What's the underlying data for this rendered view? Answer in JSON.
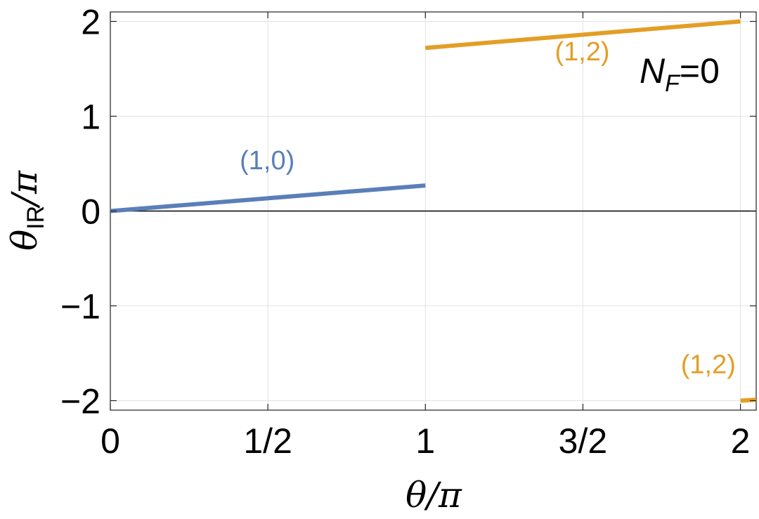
{
  "chart_data": {
    "type": "line",
    "title": "",
    "xlabel": "θ/π",
    "ylabel": {
      "base": "θ",
      "sub": "IR",
      "tail": "/π"
    },
    "xlim": [
      0,
      2.05
    ],
    "ylim": [
      -2.1,
      2.1
    ],
    "grid": true,
    "x_ticks": [
      {
        "value": 0,
        "label": "0"
      },
      {
        "value": 0.5,
        "label": "1/2"
      },
      {
        "value": 1,
        "label": "1"
      },
      {
        "value": 1.5,
        "label": "3/2"
      },
      {
        "value": 2,
        "label": "2"
      }
    ],
    "y_ticks": [
      {
        "value": -2,
        "label": "−2"
      },
      {
        "value": -1,
        "label": "−1"
      },
      {
        "value": 0,
        "label": "0"
      },
      {
        "value": 1,
        "label": "1"
      },
      {
        "value": 2,
        "label": "2"
      }
    ],
    "series": [
      {
        "color": "#5a7fb8",
        "points": [
          [
            0,
            0
          ],
          [
            1,
            0.27
          ]
        ]
      },
      {
        "color": "#e39e26",
        "points": [
          [
            1,
            1.72
          ],
          [
            2,
            2.0
          ]
        ]
      },
      {
        "color": "#e39e26",
        "points": [
          [
            2,
            -2.0
          ],
          [
            2.05,
            -1.99
          ]
        ]
      }
    ],
    "annotations": [
      {
        "text": "(1,0)",
        "x": 0.5,
        "y": 0.44,
        "color": "#5a7fb8"
      },
      {
        "text": "(1,2)",
        "x": 1.5,
        "y": 1.59,
        "color": "#e39e26"
      },
      {
        "text": "(1,2)",
        "x": 1.9,
        "y": -1.71,
        "color": "#e39e26"
      }
    ],
    "nf_label": {
      "base": "N",
      "sub": "F",
      "tail": "=0"
    }
  }
}
